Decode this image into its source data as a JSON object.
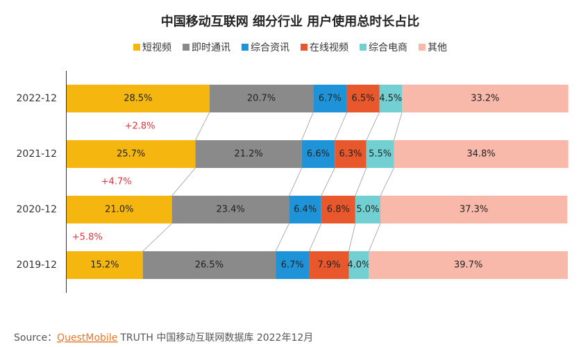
{
  "chart_data": {
    "type": "stacked-bar-horizontal",
    "title": "中国移动互联网 细分行业 用户使用总时长占比",
    "categories": [
      "2022-12",
      "2021-12",
      "2020-12",
      "2019-12"
    ],
    "xlim": [
      0,
      100
    ],
    "legend": "top",
    "series": [
      {
        "name": "短视频",
        "color": "#f5b70f",
        "values": [
          28.5,
          25.7,
          21.0,
          15.2
        ],
        "value_labels": [
          "28.5%",
          "25.7%",
          "21.0%",
          "15.2%"
        ]
      },
      {
        "name": "即时通讯",
        "color": "#8a8a8a",
        "values": [
          20.7,
          21.2,
          23.4,
          26.5
        ],
        "value_labels": [
          "20.7%",
          "21.2%",
          "23.4%",
          "26.5%"
        ]
      },
      {
        "name": "综合资讯",
        "color": "#1f93d8",
        "values": [
          6.7,
          6.6,
          6.4,
          6.7
        ],
        "value_labels": [
          "6.7%",
          "6.6%",
          "6.4%",
          "6.7%"
        ]
      },
      {
        "name": "在线视频",
        "color": "#e8582c",
        "values": [
          6.5,
          6.3,
          6.8,
          7.9
        ],
        "value_labels": [
          "6.5%",
          "6.3%",
          "6.8%",
          "7.9%"
        ]
      },
      {
        "name": "综合电商",
        "color": "#72d0d2",
        "values": [
          4.5,
          5.5,
          5.0,
          4.0
        ],
        "value_labels": [
          "4.5%",
          "5.5%",
          "5.0%",
          "4.0%"
        ]
      },
      {
        "name": "其他",
        "color": "#f8b8aa",
        "values": [
          33.2,
          34.8,
          37.3,
          39.7
        ],
        "value_labels": [
          "33.2%",
          "34.8%",
          "37.3%",
          "39.7%"
        ]
      }
    ],
    "annotations": [
      "+2.8%",
      "+4.7%",
      "+5.8%"
    ]
  },
  "source": {
    "prefix": "Source：",
    "brand": "QuestMobile",
    "text": "TRUTH 中国移动互联网数据库 2022年12月"
  }
}
